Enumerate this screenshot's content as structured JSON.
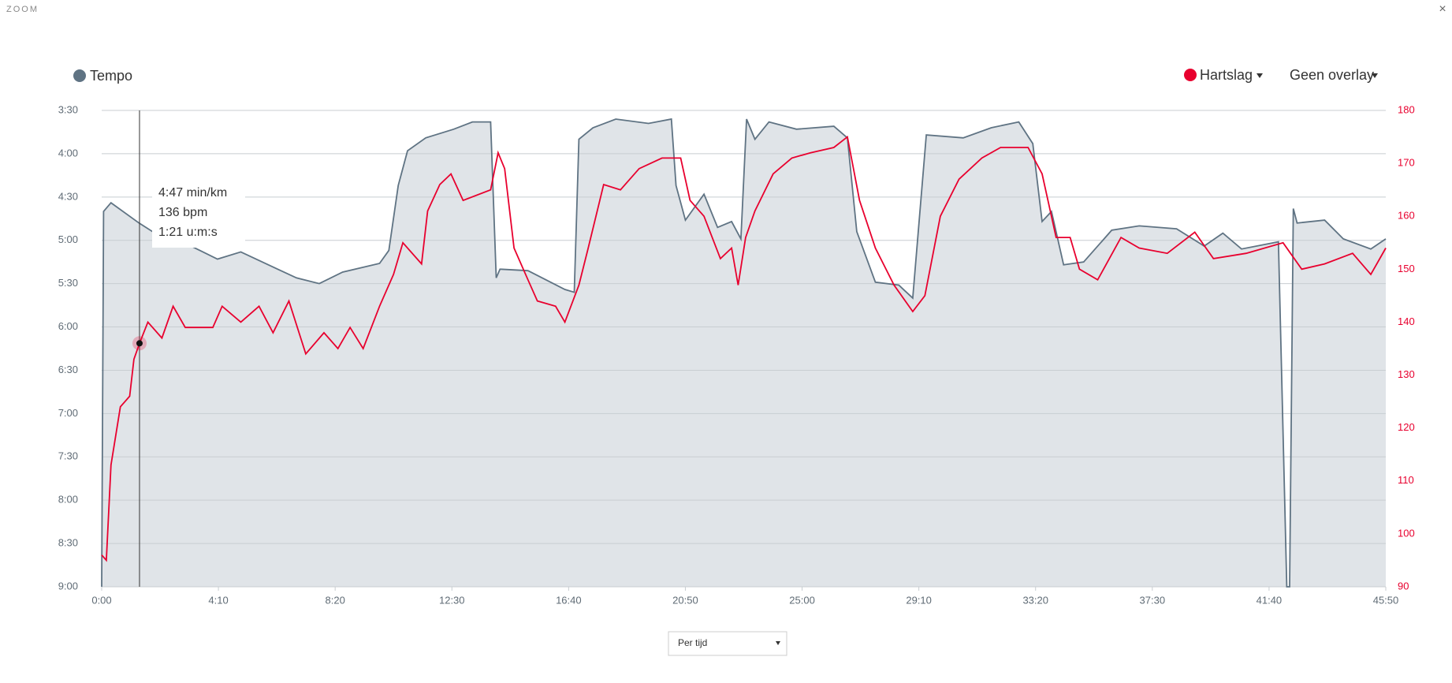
{
  "ui": {
    "zoom": "ZOOM",
    "close": "×",
    "overlay": "Geen overlay",
    "select": "Per tijd"
  },
  "chart_data": {
    "type": "line",
    "xlim": [
      0,
      2750
    ],
    "xticks": [
      {
        "value": 0,
        "label": "0:00"
      },
      {
        "value": 250,
        "label": "4:10"
      },
      {
        "value": 500,
        "label": "8:20"
      },
      {
        "value": 750,
        "label": "12:30"
      },
      {
        "value": 1000,
        "label": "16:40"
      },
      {
        "value": 1250,
        "label": "20:50"
      },
      {
        "value": 1500,
        "label": "25:00"
      },
      {
        "value": 1750,
        "label": "29:10"
      },
      {
        "value": 2000,
        "label": "33:20"
      },
      {
        "value": 2250,
        "label": "37:30"
      },
      {
        "value": 2500,
        "label": "41:40"
      },
      {
        "value": 2750,
        "label": "45:50"
      }
    ],
    "ylim": [
      540,
      210
    ],
    "yticks": [
      {
        "value": 210,
        "label": "3:30"
      },
      {
        "value": 240,
        "label": "4:00"
      },
      {
        "value": 270,
        "label": "4:30"
      },
      {
        "value": 300,
        "label": "5:00"
      },
      {
        "value": 330,
        "label": "5:30"
      },
      {
        "value": 360,
        "label": "6:00"
      },
      {
        "value": 390,
        "label": "6:30"
      },
      {
        "value": 420,
        "label": "7:00"
      },
      {
        "value": 450,
        "label": "7:30"
      },
      {
        "value": 480,
        "label": "8:00"
      },
      {
        "value": 510,
        "label": "8:30"
      },
      {
        "value": 540,
        "label": "9:00"
      }
    ],
    "y2lim": [
      90,
      180
    ],
    "y2ticks": [
      90,
      100,
      110,
      120,
      130,
      140,
      150,
      160,
      170,
      180
    ],
    "grid": true,
    "series": [
      {
        "name": "Tempo",
        "color": "#5f7383",
        "x": [
          0,
          4,
          20,
          80,
          109,
          179,
          248,
          298,
          377,
          417,
          466,
          516,
          595,
          615,
          635,
          655,
          694,
          754,
          794,
          833,
          845,
          853,
          913,
          992,
          1012,
          1022,
          1052,
          1101,
          1171,
          1220,
          1230,
          1250,
          1290,
          1319,
          1349,
          1369,
          1381,
          1399,
          1429,
          1488,
          1568,
          1597,
          1617,
          1657,
          1707,
          1737,
          1766,
          1845,
          1905,
          1964,
          1994,
          2014,
          2034,
          2060,
          2103,
          2163,
          2222,
          2302,
          2361,
          2401,
          2441,
          2520,
          2538,
          2544,
          2552,
          2560,
          2619,
          2659,
          2718,
          2750
        ],
        "values": [
          540,
          280,
          274,
          288,
          294,
          302,
          313,
          308,
          320,
          326,
          330,
          322,
          316,
          307,
          262,
          238,
          229,
          223,
          218,
          218,
          326,
          320,
          321,
          334,
          336,
          230,
          222,
          216,
          219,
          216,
          262,
          286,
          268,
          291,
          287,
          299,
          216,
          230,
          218,
          223,
          221,
          229,
          294,
          329,
          331,
          340,
          227,
          229,
          222,
          218,
          233,
          287,
          280,
          317,
          315,
          293,
          290,
          292,
          304,
          295,
          306,
          301,
          540,
          540,
          278,
          288,
          286,
          299,
          306,
          299
        ]
      },
      {
        "name": "Hartslag",
        "color": "#e8002e",
        "axis": "y2",
        "x": [
          0,
          10,
          20,
          40,
          60,
          69,
          81,
          99,
          129,
          153,
          179,
          238,
          258,
          298,
          337,
          367,
          401,
          437,
          476,
          506,
          532,
          560,
          595,
          625,
          645,
          685,
          698,
          724,
          748,
          774,
          833,
          849,
          863,
          883,
          913,
          933,
          972,
          992,
          1022,
          1042,
          1075,
          1111,
          1151,
          1200,
          1240,
          1260,
          1290,
          1325,
          1349,
          1363,
          1379,
          1399,
          1438,
          1478,
          1518,
          1568,
          1597,
          1623,
          1657,
          1697,
          1737,
          1763,
          1796,
          1836,
          1885,
          1925,
          1984,
          2014,
          2044,
          2074,
          2094,
          2133,
          2183,
          2222,
          2282,
          2341,
          2381,
          2451,
          2530,
          2570,
          2619,
          2679,
          2718,
          2750
        ],
        "values": [
          96,
          95,
          113,
          124,
          126,
          133,
          136,
          140,
          137,
          143,
          139,
          139,
          143,
          140,
          143,
          138,
          144,
          134,
          138,
          135,
          139,
          135,
          143,
          149,
          155,
          151,
          161,
          166,
          168,
          163,
          165,
          172,
          169,
          154,
          148,
          144,
          143,
          140,
          147,
          154,
          166,
          165,
          169,
          171,
          171,
          163,
          160,
          152,
          154,
          147,
          156,
          161,
          168,
          171,
          172,
          173,
          175,
          163,
          154,
          147,
          142,
          145,
          160,
          167,
          171,
          173,
          173,
          168,
          156,
          156,
          150,
          148,
          156,
          154,
          153,
          157,
          152,
          153,
          155,
          150,
          151,
          153,
          149,
          154
        ]
      }
    ],
    "tooltip": {
      "x": 81,
      "hr": 136,
      "lines": [
        "4:47 min/km",
        "136 bpm",
        "1:21 u:m:s"
      ]
    }
  }
}
